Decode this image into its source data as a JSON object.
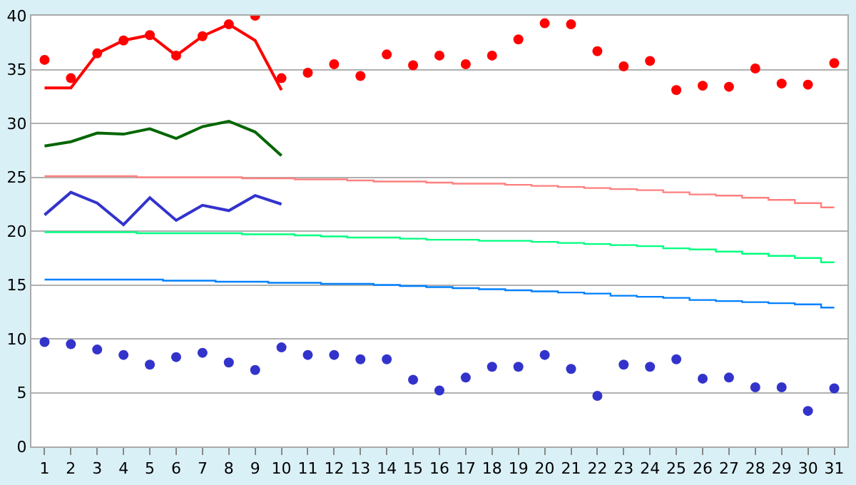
{
  "chart_data": {
    "type": "line",
    "x": [
      1,
      2,
      3,
      4,
      5,
      6,
      7,
      8,
      9,
      10,
      11,
      12,
      13,
      14,
      15,
      16,
      17,
      18,
      19,
      20,
      21,
      22,
      23,
      24,
      25,
      26,
      27,
      28,
      29,
      30,
      31
    ],
    "xlim": [
      0.5,
      31.5
    ],
    "xticks": [
      1,
      2,
      3,
      4,
      5,
      6,
      7,
      8,
      9,
      10,
      11,
      12,
      13,
      14,
      15,
      16,
      17,
      18,
      19,
      20,
      21,
      22,
      23,
      24,
      25,
      26,
      27,
      28,
      29,
      30,
      31
    ],
    "ylim": [
      0,
      40
    ],
    "yticks": [
      0,
      5,
      10,
      15,
      20,
      25,
      30,
      35,
      40
    ],
    "grid": "y",
    "series": [
      {
        "type": "scatter",
        "marker": "circle",
        "color": "#ff0000",
        "values": [
          35.9,
          34.2,
          36.5,
          37.7,
          38.2,
          36.3,
          38.1,
          39.2,
          40.0,
          34.2,
          34.7,
          35.5,
          34.4,
          36.4,
          35.4,
          36.3,
          35.5,
          36.3,
          37.8,
          39.3,
          39.2,
          36.7,
          35.3,
          35.8,
          33.1,
          33.5,
          33.4,
          35.1,
          33.7,
          33.6,
          35.6
        ]
      },
      {
        "color": "#ff0000",
        "values": [
          33.3,
          33.3,
          36.5,
          37.7,
          38.2,
          36.3,
          38.1,
          39.2,
          37.7,
          33.1,
          null,
          null,
          null,
          null,
          null,
          null,
          null,
          null,
          null,
          null,
          null,
          null,
          null,
          null,
          null,
          null,
          null,
          null,
          null,
          null,
          null
        ]
      },
      {
        "color": "#006600",
        "values": [
          27.9,
          28.3,
          29.1,
          29.0,
          29.5,
          28.6,
          29.7,
          30.2,
          29.2,
          27.0,
          null,
          null,
          null,
          null,
          null,
          null,
          null,
          null,
          null,
          null,
          null,
          null,
          null,
          null,
          null,
          null,
          null,
          null,
          null,
          null,
          null
        ]
      },
      {
        "color": "#3333cc",
        "values": [
          21.5,
          23.6,
          22.6,
          20.6,
          23.1,
          21.0,
          22.4,
          21.9,
          23.3,
          22.5,
          null,
          null,
          null,
          null,
          null,
          null,
          null,
          null,
          null,
          null,
          null,
          null,
          null,
          null,
          null,
          null,
          null,
          null,
          null,
          null,
          null
        ]
      },
      {
        "type": "step",
        "color": "#ff8080",
        "values": [
          25.1,
          25.1,
          25.1,
          25.1,
          25.0,
          25.0,
          25.0,
          25.0,
          24.9,
          24.9,
          24.8,
          24.8,
          24.7,
          24.6,
          24.6,
          24.5,
          24.4,
          24.4,
          24.3,
          24.2,
          24.1,
          24.0,
          23.9,
          23.8,
          23.6,
          23.4,
          23.3,
          23.1,
          22.9,
          22.6,
          22.2
        ]
      },
      {
        "type": "step",
        "color": "#00ff80",
        "values": [
          19.9,
          19.9,
          19.9,
          19.9,
          19.8,
          19.8,
          19.8,
          19.8,
          19.7,
          19.7,
          19.6,
          19.5,
          19.4,
          19.4,
          19.3,
          19.2,
          19.2,
          19.1,
          19.1,
          19.0,
          18.9,
          18.8,
          18.7,
          18.6,
          18.4,
          18.3,
          18.1,
          17.9,
          17.7,
          17.5,
          17.1
        ]
      },
      {
        "type": "step",
        "color": "#0080ff",
        "values": [
          15.5,
          15.5,
          15.5,
          15.5,
          15.5,
          15.4,
          15.4,
          15.3,
          15.3,
          15.2,
          15.2,
          15.1,
          15.1,
          15.0,
          14.9,
          14.8,
          14.7,
          14.6,
          14.5,
          14.4,
          14.3,
          14.2,
          14.0,
          13.9,
          13.8,
          13.6,
          13.5,
          13.4,
          13.3,
          13.2,
          12.9
        ]
      },
      {
        "type": "scatter",
        "marker": "circle",
        "color": "#3333cc",
        "values": [
          9.7,
          9.5,
          9.0,
          8.5,
          7.6,
          8.3,
          8.7,
          7.8,
          7.1,
          9.2,
          8.5,
          8.5,
          8.1,
          8.1,
          6.2,
          5.2,
          6.4,
          7.4,
          7.4,
          8.5,
          7.2,
          4.7,
          7.6,
          7.4,
          8.1,
          6.3,
          6.4,
          5.5,
          5.5,
          3.3,
          5.4
        ]
      }
    ]
  }
}
